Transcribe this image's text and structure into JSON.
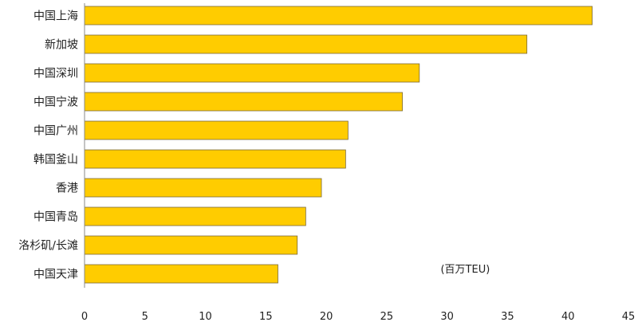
{
  "chart_data": {
    "type": "bar",
    "orientation": "horizontal",
    "categories": [
      "中国上海",
      "新加坡",
      "中国深圳",
      "中国宁波",
      "中国广州",
      "韩国釜山",
      "香港",
      "中国青岛",
      "洛杉矶/长滩",
      "中国天津"
    ],
    "values": [
      42.0,
      36.6,
      27.7,
      26.3,
      21.8,
      21.6,
      19.6,
      18.3,
      17.6,
      16.0
    ],
    "title": "",
    "xlabel": "",
    "ylabel": "",
    "unit_annotation": "(百万TEU)",
    "xlim": [
      0,
      45
    ],
    "xticks": [
      0,
      5,
      10,
      15,
      20,
      25,
      30,
      35,
      40,
      45
    ],
    "grid": false,
    "legend": "none",
    "bar_color": "#FFCC00"
  }
}
